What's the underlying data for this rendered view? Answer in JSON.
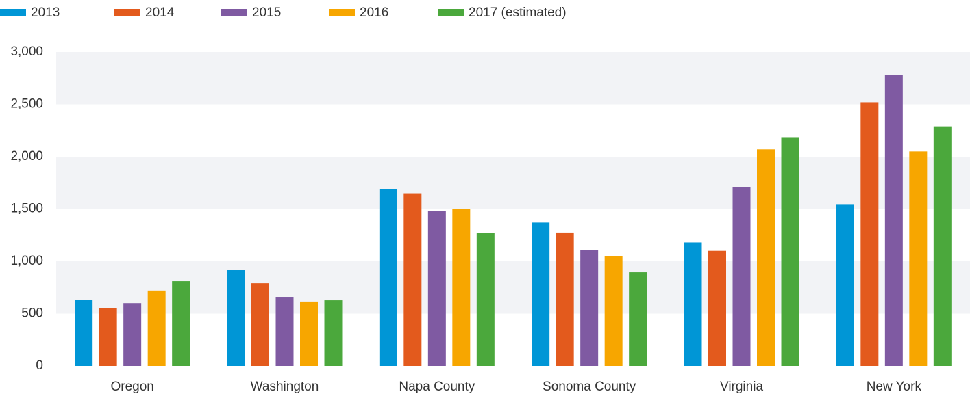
{
  "chart_data": {
    "type": "bar",
    "categories": [
      "Oregon",
      "Washington",
      "Napa County",
      "Sonoma County",
      "Virginia",
      "New York"
    ],
    "series": [
      {
        "name": "2013",
        "color": "#0096d6",
        "values": [
          630,
          915,
          1690,
          1370,
          1180,
          1540
        ]
      },
      {
        "name": "2014",
        "color": "#e35a1d",
        "values": [
          555,
          790,
          1650,
          1275,
          1100,
          2520
        ]
      },
      {
        "name": "2015",
        "color": "#7f5aa2",
        "values": [
          600,
          660,
          1480,
          1110,
          1710,
          2780
        ]
      },
      {
        "name": "2016",
        "color": "#f7a600",
        "values": [
          720,
          615,
          1500,
          1050,
          2070,
          2050
        ]
      },
      {
        "name": "2017 (estimated)",
        "color": "#4ba83c",
        "values": [
          810,
          627,
          1270,
          895,
          2180,
          2290
        ]
      }
    ],
    "ylim": [
      0,
      3000
    ],
    "yticks": [
      0,
      500,
      {
        "value": 1000,
        "label": "1,000"
      },
      {
        "value": 1500,
        "label": "1,500"
      },
      {
        "value": 2000,
        "label": "2,000"
      },
      {
        "value": 2500,
        "label": "2,500"
      },
      {
        "value": 3000,
        "label": "3,000"
      }
    ],
    "grid": true,
    "legend": "top"
  }
}
